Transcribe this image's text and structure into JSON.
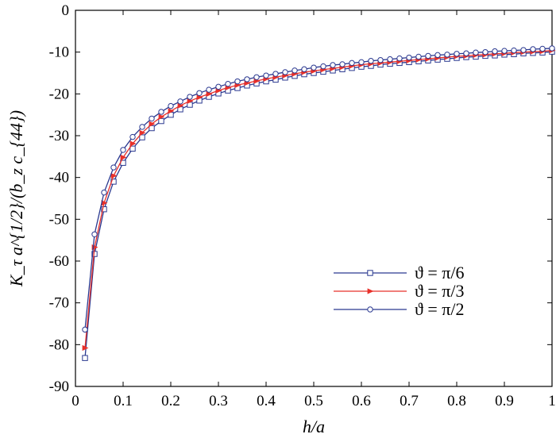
{
  "chart_data": {
    "type": "line",
    "xlabel": "h/a",
    "ylabel": "K_τ a^{1/2}/(b_z c_{44})",
    "xlim": [
      0,
      1
    ],
    "ylim": [
      -90,
      0
    ],
    "xticks": [
      "0",
      "0.1",
      "0.2",
      "0.3",
      "0.4",
      "0.5",
      "0.6",
      "0.7",
      "0.8",
      "0.9",
      "1"
    ],
    "yticks": [
      "0",
      "-10",
      "-20",
      "-30",
      "-40",
      "-50",
      "-60",
      "-70",
      "-80",
      "-90"
    ],
    "grid": false,
    "legend_position": "center-right",
    "x": [
      0.02,
      0.04,
      0.06,
      0.08,
      0.1,
      0.12,
      0.14,
      0.16,
      0.18,
      0.2,
      0.22,
      0.24,
      0.26,
      0.28,
      0.3,
      0.32,
      0.34,
      0.36,
      0.38,
      0.4,
      0.42,
      0.44,
      0.46,
      0.48,
      0.5,
      0.52,
      0.54,
      0.56,
      0.58,
      0.6,
      0.62,
      0.64,
      0.66,
      0.68,
      0.7,
      0.72,
      0.74,
      0.76,
      0.78,
      0.8,
      0.82,
      0.84,
      0.86,
      0.88,
      0.9,
      0.92,
      0.94,
      0.96,
      0.98,
      1.0
    ],
    "series": [
      {
        "name": "ϑ = π/6",
        "color": "#2b3990",
        "marker": "square",
        "values": [
          -83.2,
          -58.3,
          -47.6,
          -41.0,
          -36.5,
          -33.1,
          -30.4,
          -28.2,
          -26.5,
          -25.0,
          -23.7,
          -22.6,
          -21.6,
          -20.7,
          -19.9,
          -19.2,
          -18.6,
          -18.0,
          -17.5,
          -17.0,
          -16.6,
          -16.1,
          -15.7,
          -15.3,
          -15.0,
          -14.7,
          -14.4,
          -14.1,
          -13.8,
          -13.5,
          -13.3,
          -13.0,
          -12.8,
          -12.6,
          -12.4,
          -12.2,
          -12.0,
          -11.8,
          -11.6,
          -11.4,
          -11.2,
          -11.1,
          -10.9,
          -10.8,
          -10.6,
          -10.5,
          -10.3,
          -10.2,
          -10.1,
          -9.9
        ]
      },
      {
        "name": "ϑ = π/3",
        "color": "#e8302a",
        "marker": "triangle-right",
        "values": [
          -80.8,
          -56.7,
          -46.1,
          -39.6,
          -35.2,
          -31.9,
          -29.3,
          -27.2,
          -25.5,
          -24.1,
          -22.8,
          -21.7,
          -20.8,
          -20.0,
          -19.2,
          -18.5,
          -17.9,
          -17.4,
          -16.9,
          -16.4,
          -16.0,
          -15.6,
          -15.2,
          -14.8,
          -14.5,
          -14.2,
          -13.9,
          -13.6,
          -13.3,
          -13.0,
          -12.8,
          -12.6,
          -12.4,
          -12.2,
          -12.0,
          -11.8,
          -11.6,
          -11.4,
          -11.2,
          -11.0,
          -10.9,
          -10.7,
          -10.6,
          -10.4,
          -10.3,
          -10.1,
          -10.0,
          -9.9,
          -9.8,
          -9.6
        ]
      },
      {
        "name": "ϑ = π/2",
        "color": "#2b3990",
        "marker": "circle",
        "values": [
          -76.4,
          -53.6,
          -43.6,
          -37.6,
          -33.4,
          -30.3,
          -27.9,
          -25.9,
          -24.3,
          -22.9,
          -21.8,
          -20.7,
          -19.8,
          -19.0,
          -18.3,
          -17.6,
          -17.0,
          -16.5,
          -16.0,
          -15.6,
          -15.2,
          -14.8,
          -14.4,
          -14.1,
          -13.7,
          -13.4,
          -13.1,
          -12.9,
          -12.6,
          -12.4,
          -12.1,
          -11.9,
          -11.7,
          -11.5,
          -11.3,
          -11.1,
          -10.9,
          -10.7,
          -10.6,
          -10.4,
          -10.3,
          -10.1,
          -10.0,
          -9.8,
          -9.7,
          -9.6,
          -9.5,
          -9.3,
          -9.2,
          -9.1
        ]
      }
    ]
  }
}
